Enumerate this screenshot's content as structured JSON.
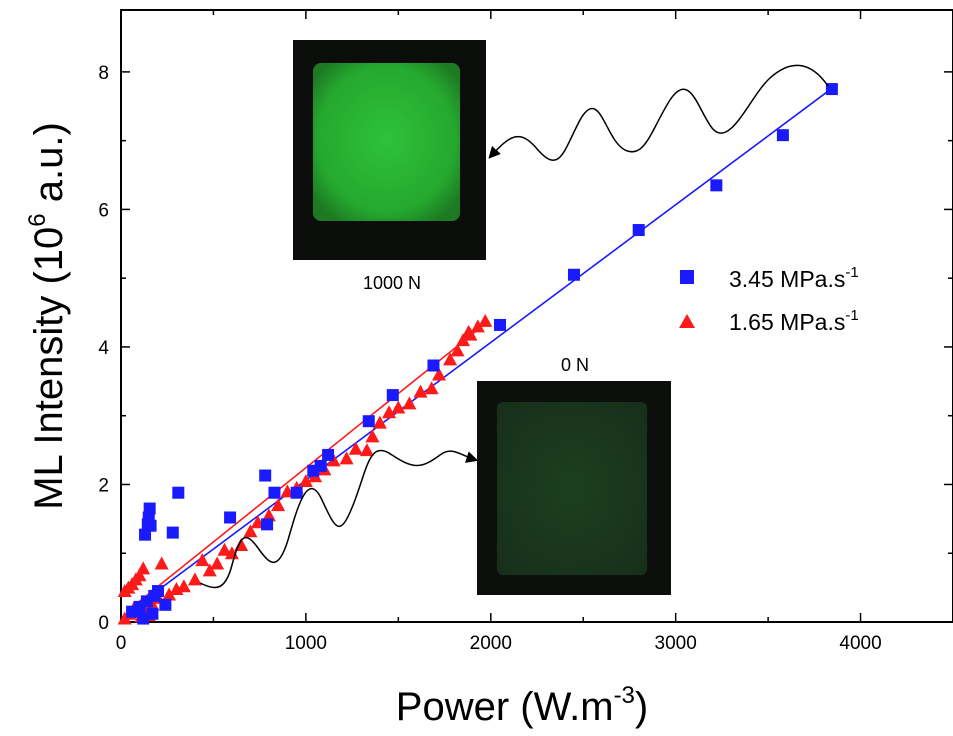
{
  "chart_data": {
    "type": "scatter",
    "xlabel": "Power (W.m",
    "xlabel_sup": "-3",
    "xlabel_end": ")",
    "ylabel": "ML Intensity (10",
    "ylabel_sup": "6",
    "ylabel_end": " a.u.)",
    "xlim": [
      0,
      4500
    ],
    "ylim": [
      0,
      8.9
    ],
    "xticks": [
      0,
      1000,
      2000,
      3000,
      4000
    ],
    "yticks": [
      0,
      2,
      4,
      6,
      8
    ],
    "legend_position": "right",
    "series": [
      {
        "name": "3.45 MPa.s",
        "name_sup": "-1",
        "marker": "square",
        "color": "#1a1aff",
        "fit_line": {
          "x": [
            30,
            3840
          ],
          "y": [
            0.12,
            7.75
          ]
        },
        "points": [
          [
            130,
            1.27
          ],
          [
            145,
            1.42
          ],
          [
            150,
            1.52
          ],
          [
            155,
            1.65
          ],
          [
            160,
            1.4
          ],
          [
            280,
            1.3
          ],
          [
            310,
            1.88
          ],
          [
            590,
            1.52
          ],
          [
            780,
            2.13
          ],
          [
            790,
            1.42
          ],
          [
            830,
            1.88
          ],
          [
            950,
            1.88
          ],
          [
            1040,
            2.2
          ],
          [
            1080,
            2.27
          ],
          [
            1120,
            2.43
          ],
          [
            1340,
            2.92
          ],
          [
            1470,
            3.3
          ],
          [
            1690,
            3.73
          ],
          [
            2050,
            4.32
          ],
          [
            2450,
            5.05
          ],
          [
            2800,
            5.7
          ],
          [
            3220,
            6.35
          ],
          [
            3580,
            7.08
          ],
          [
            3845,
            7.75
          ],
          [
            60,
            0.15
          ],
          [
            100,
            0.22
          ],
          [
            140,
            0.3
          ],
          [
            180,
            0.38
          ],
          [
            240,
            0.25
          ],
          [
            120,
            0.05
          ],
          [
            170,
            0.12
          ],
          [
            200,
            0.45
          ]
        ]
      },
      {
        "name": "1.65 MPa.s",
        "name_sup": "-1",
        "marker": "triangle",
        "color": "#ff1a1a",
        "fit_line": {
          "x": [
            30,
            1990
          ],
          "y": [
            0.15,
            4.38
          ]
        },
        "points": [
          [
            20,
            0.45
          ],
          [
            40,
            0.5
          ],
          [
            60,
            0.55
          ],
          [
            80,
            0.62
          ],
          [
            100,
            0.68
          ],
          [
            120,
            0.78
          ],
          [
            20,
            0.05
          ],
          [
            50,
            0.12
          ],
          [
            70,
            0.2
          ],
          [
            90,
            0.18
          ],
          [
            110,
            0.08
          ],
          [
            130,
            0.15
          ],
          [
            150,
            0.1
          ],
          [
            170,
            0.25
          ],
          [
            200,
            0.35
          ],
          [
            220,
            0.85
          ],
          [
            260,
            0.4
          ],
          [
            300,
            0.48
          ],
          [
            340,
            0.52
          ],
          [
            400,
            0.62
          ],
          [
            440,
            0.9
          ],
          [
            480,
            0.75
          ],
          [
            520,
            0.85
          ],
          [
            560,
            1.05
          ],
          [
            600,
            1.0
          ],
          [
            650,
            1.12
          ],
          [
            700,
            1.32
          ],
          [
            740,
            1.45
          ],
          [
            800,
            1.55
          ],
          [
            850,
            1.7
          ],
          [
            900,
            1.9
          ],
          [
            950,
            1.95
          ],
          [
            1000,
            2.05
          ],
          [
            1050,
            2.12
          ],
          [
            1100,
            2.22
          ],
          [
            1150,
            2.35
          ],
          [
            1220,
            2.38
          ],
          [
            1270,
            2.52
          ],
          [
            1330,
            2.5
          ],
          [
            1360,
            2.7
          ],
          [
            1400,
            2.9
          ],
          [
            1450,
            3.05
          ],
          [
            1500,
            3.12
          ],
          [
            1560,
            3.18
          ],
          [
            1620,
            3.35
          ],
          [
            1680,
            3.4
          ],
          [
            1720,
            3.6
          ],
          [
            1780,
            3.82
          ],
          [
            1820,
            3.95
          ],
          [
            1850,
            4.1
          ],
          [
            1890,
            4.18
          ],
          [
            1930,
            4.3
          ],
          [
            1970,
            4.38
          ],
          [
            1880,
            4.22
          ]
        ]
      }
    ],
    "insets": [
      {
        "caption": "1000 N",
        "state": "bright"
      },
      {
        "caption": "0 N",
        "state": "dim"
      }
    ]
  },
  "colors": {
    "axis": "#000000",
    "blue": "#1a1aff",
    "red": "#ff1a1a",
    "inset_bright": "#2fc43a",
    "inset_dim": "#1c3a1c"
  }
}
